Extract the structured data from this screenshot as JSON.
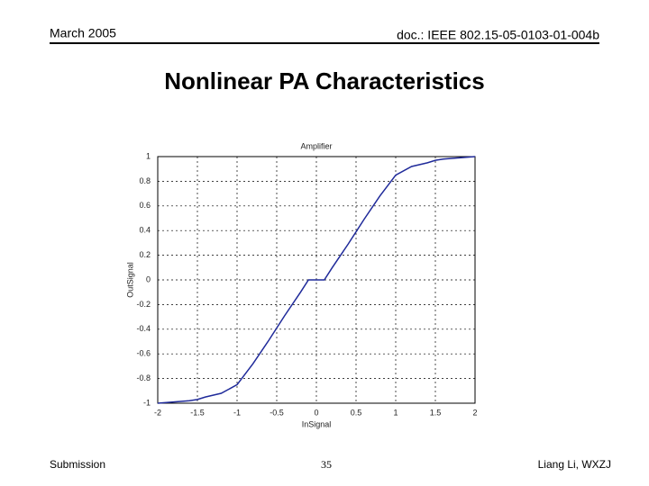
{
  "header": {
    "date": "March 2005",
    "doc": "doc.: IEEE 802.15-05-0103-01-004b"
  },
  "slide_title": "Nonlinear PA Characteristics",
  "footer": {
    "left": "Submission",
    "page": "35",
    "right": "Liang Li, WXZJ"
  },
  "chart_data": {
    "type": "line",
    "title": "Amplifier",
    "xlabel": "InSignal",
    "ylabel": "OutSignal",
    "x": [
      -2,
      -1.8,
      -1.6,
      -1.5,
      -1.4,
      -1.2,
      -1,
      -0.8,
      -0.6,
      -0.4,
      -0.2,
      -0.1,
      0,
      0.1,
      0.2,
      0.4,
      0.6,
      0.8,
      1,
      1.2,
      1.4,
      1.5,
      1.6,
      1.8,
      2
    ],
    "series": [
      {
        "color": "#1f2a9a",
        "values": [
          -1,
          -0.99,
          -0.98,
          -0.97,
          -0.95,
          -0.92,
          -0.85,
          -0.68,
          -0.49,
          -0.29,
          -0.1,
          0,
          0,
          0,
          0.1,
          0.29,
          0.49,
          0.68,
          0.85,
          0.92,
          0.95,
          0.97,
          0.98,
          0.99,
          1
        ]
      }
    ],
    "xlim": [
      -2,
      2
    ],
    "xticks": [
      -2,
      -1.5,
      -1,
      -0.5,
      0,
      0.5,
      1,
      1.5,
      2
    ],
    "ylim": [
      -1,
      1
    ],
    "yticks": [
      -1,
      -0.8,
      -0.6,
      -0.4,
      -0.2,
      0,
      0.2,
      0.4,
      0.6,
      0.8,
      1
    ],
    "grid": true
  }
}
